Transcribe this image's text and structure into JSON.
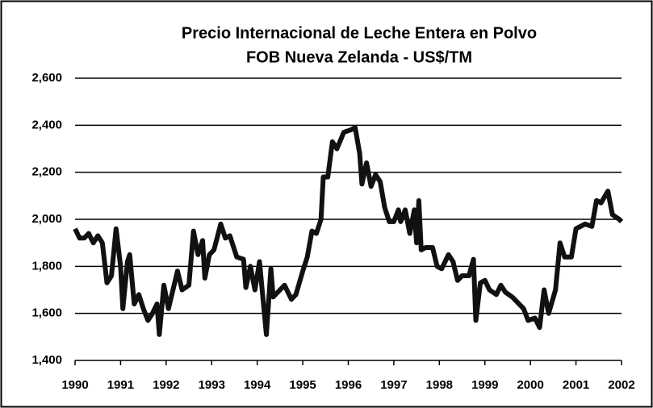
{
  "chart_data": {
    "type": "line",
    "title": "Precio Internacional de Leche Entera en Polvo",
    "subtitle": "FOB Nueva Zelanda - US$/TM",
    "x": [
      1990.0,
      1990.1,
      1990.2,
      1990.3,
      1990.4,
      1990.5,
      1990.6,
      1990.7,
      1990.8,
      1990.9,
      1991.0,
      1991.05,
      1991.15,
      1991.2,
      1991.3,
      1991.4,
      1991.5,
      1991.6,
      1991.7,
      1991.8,
      1991.85,
      1991.95,
      1992.05,
      1992.15,
      1992.25,
      1992.35,
      1992.5,
      1992.6,
      1992.7,
      1992.8,
      1992.85,
      1992.95,
      1993.05,
      1993.2,
      1993.3,
      1993.4,
      1993.55,
      1993.7,
      1993.75,
      1993.85,
      1993.95,
      1994.05,
      1994.2,
      1994.3,
      1994.35,
      1994.45,
      1994.6,
      1994.75,
      1994.85,
      1995.0,
      1995.1,
      1995.2,
      1995.3,
      1995.4,
      1995.45,
      1995.55,
      1995.65,
      1995.75,
      1995.9,
      1996.05,
      1996.15,
      1996.25,
      1996.3,
      1996.4,
      1996.5,
      1996.6,
      1996.7,
      1996.8,
      1996.9,
      1997.0,
      1997.1,
      1997.15,
      1997.25,
      1997.35,
      1997.45,
      1997.5,
      1997.55,
      1997.6,
      1997.7,
      1997.85,
      1997.95,
      1998.05,
      1998.2,
      1998.3,
      1998.4,
      1998.5,
      1998.65,
      1998.75,
      1998.8,
      1998.9,
      1999.0,
      1999.1,
      1999.25,
      1999.35,
      1999.45,
      1999.6,
      1999.75,
      1999.85,
      1999.95,
      2000.1,
      2000.2,
      2000.3,
      2000.4,
      2000.55,
      2000.65,
      2000.75,
      2000.9,
      2001.0,
      2001.2,
      2001.35,
      2001.45,
      2001.55,
      2001.7,
      2001.8,
      2001.95,
      2002.0
    ],
    "series": [
      {
        "name": "Precio",
        "color": "#111111",
        "values": [
          1960,
          1920,
          1920,
          1940,
          1900,
          1930,
          1900,
          1730,
          1760,
          1960,
          1800,
          1620,
          1820,
          1850,
          1640,
          1680,
          1620,
          1570,
          1600,
          1640,
          1510,
          1720,
          1620,
          1700,
          1780,
          1700,
          1720,
          1950,
          1850,
          1910,
          1750,
          1850,
          1870,
          1980,
          1920,
          1930,
          1840,
          1830,
          1710,
          1800,
          1700,
          1820,
          1510,
          1790,
          1670,
          1690,
          1720,
          1660,
          1680,
          1780,
          1840,
          1950,
          1940,
          2000,
          2180,
          2180,
          2330,
          2300,
          2370,
          2380,
          2390,
          2280,
          2150,
          2240,
          2140,
          2190,
          2160,
          2050,
          1990,
          1990,
          2040,
          1990,
          2040,
          1940,
          2040,
          1900,
          2080,
          1870,
          1880,
          1880,
          1800,
          1790,
          1850,
          1820,
          1740,
          1760,
          1760,
          1830,
          1570,
          1730,
          1740,
          1700,
          1680,
          1720,
          1690,
          1670,
          1640,
          1620,
          1570,
          1580,
          1540,
          1700,
          1600,
          1700,
          1900,
          1840,
          1840,
          1960,
          1980,
          1970,
          2080,
          2070,
          2120,
          2020,
          2000,
          1990
        ]
      }
    ],
    "xlim": [
      1990,
      2002
    ],
    "xticks": [
      1990,
      1991,
      1992,
      1993,
      1994,
      1995,
      1996,
      1997,
      1998,
      1999,
      2000,
      2001,
      2002
    ],
    "ylim": [
      1400,
      2600
    ],
    "yticks": [
      {
        "value": 1400,
        "label": "1,400"
      },
      {
        "value": 1600,
        "label": "1,600"
      },
      {
        "value": 1800,
        "label": "1,800"
      },
      {
        "value": 2000,
        "label": "2,000"
      },
      {
        "value": 2200,
        "label": "2,200"
      },
      {
        "value": 2400,
        "label": "2,400"
      },
      {
        "value": 2600,
        "label": "2,600"
      }
    ],
    "grid": true
  }
}
